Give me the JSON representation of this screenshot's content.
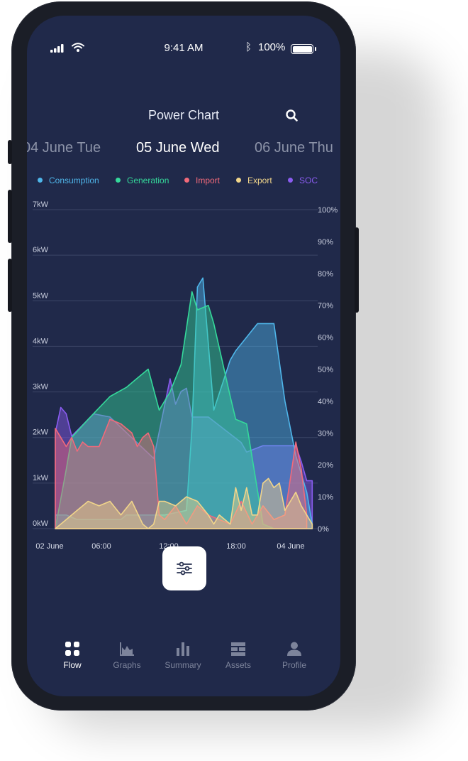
{
  "status_bar": {
    "time": "9:41 AM",
    "battery": "100%"
  },
  "header": {
    "title": "Power Chart"
  },
  "dates": {
    "prev": "04 June Tue",
    "current": "05 June Wed",
    "next": "06 June Thu"
  },
  "legend": [
    {
      "label": "Consumption",
      "color": "#4fb6ea"
    },
    {
      "label": "Generation",
      "color": "#35d99b"
    },
    {
      "label": "Import",
      "color": "#f26a7a"
    },
    {
      "label": "Export",
      "color": "#f1d58a"
    },
    {
      "label": "SOC",
      "color": "#8a5cf0"
    }
  ],
  "nav": [
    {
      "label": "Flow",
      "icon": "grid-icon",
      "active": true
    },
    {
      "label": "Graphs",
      "icon": "area-chart-icon",
      "active": false
    },
    {
      "label": "Summary",
      "icon": "bar-chart-icon",
      "active": false
    },
    {
      "label": "Assets",
      "icon": "list-icon",
      "active": false
    },
    {
      "label": "Profile",
      "icon": "user-icon",
      "active": false
    }
  ],
  "chart_data": {
    "type": "area",
    "x_tick_labels": [
      "02 June",
      "06:00",
      "12:00",
      "18:00",
      "04 June"
    ],
    "y_left_labels": [
      "0kW",
      "1kW",
      "2kW",
      "3kW",
      "4kW",
      "5kW",
      "6kW",
      "7kW"
    ],
    "y_left_range": [
      0,
      7
    ],
    "y_left_unit": "kW",
    "y_right_labels": [
      "0%",
      "10%",
      "20%",
      "30%",
      "40%",
      "50%",
      "60%",
      "70%",
      "80%",
      "90%",
      "100%"
    ],
    "y_right_range": [
      0,
      100
    ],
    "y_right_unit": "%",
    "x_range_hours": [
      0,
      48
    ],
    "series": [
      {
        "name": "SOC",
        "color": "#8a5cf0",
        "axis": "right",
        "x": [
          0,
          1,
          2,
          3,
          7,
          10,
          18,
          21,
          22,
          23,
          24,
          25,
          28,
          34,
          35,
          38,
          44,
          45,
          46,
          47
        ],
        "y": [
          30,
          38,
          36,
          29,
          36,
          35,
          22,
          47,
          39,
          43,
          44,
          35,
          35,
          27,
          24,
          26,
          26,
          21,
          15,
          15
        ]
      },
      {
        "name": "Consumption",
        "color": "#4fb6ea",
        "axis": "left",
        "x": [
          0,
          2,
          4,
          6,
          8,
          10,
          12,
          13,
          16,
          18,
          20,
          24,
          25,
          26,
          27,
          29,
          32,
          33,
          37,
          40,
          42,
          44,
          46,
          47
        ],
        "y": [
          0.3,
          0.3,
          0.2,
          0.2,
          0.2,
          0.2,
          0.2,
          0.3,
          0.3,
          0.3,
          0.3,
          0.4,
          2.2,
          5.3,
          5.5,
          2.6,
          3.7,
          3.9,
          4.5,
          4.5,
          2.8,
          1.6,
          0.8,
          0.1
        ]
      },
      {
        "name": "Generation",
        "color": "#35d99b",
        "axis": "left",
        "x": [
          0,
          2,
          3,
          6,
          10,
          13,
          15,
          17,
          19,
          21,
          23,
          25,
          26,
          28,
          29,
          32,
          33,
          35,
          38,
          40,
          42,
          44
        ],
        "y": [
          0,
          1.3,
          2.0,
          2.4,
          2.9,
          3.1,
          3.3,
          3.5,
          2.6,
          3.0,
          3.6,
          5.2,
          4.8,
          4.9,
          4.5,
          2.9,
          2.4,
          2.3,
          0.1,
          0.0,
          0.0,
          0.0
        ]
      },
      {
        "name": "Import",
        "color": "#f26a7a",
        "axis": "left",
        "x": [
          0,
          1,
          2,
          3,
          4,
          5,
          6,
          8,
          10,
          12,
          14,
          15,
          16,
          17,
          18,
          19,
          20,
          22,
          24,
          26,
          28,
          30,
          32,
          34,
          36,
          38,
          40,
          42,
          44,
          45,
          46
        ],
        "y": [
          2.2,
          2.0,
          1.8,
          2.0,
          1.7,
          1.9,
          1.8,
          1.8,
          2.4,
          2.3,
          2.1,
          1.8,
          2.0,
          2.1,
          1.8,
          0.3,
          0.2,
          0.5,
          0.1,
          0.5,
          0.3,
          0.2,
          0.1,
          0.6,
          0.1,
          0.5,
          0.2,
          0.3,
          1.9,
          1.3,
          0.3
        ]
      },
      {
        "name": "Export",
        "color": "#f1d58a",
        "axis": "left",
        "x": [
          0,
          2,
          4,
          6,
          8,
          10,
          12,
          14,
          16,
          17,
          18,
          19,
          20,
          22,
          24,
          26,
          28,
          29,
          30,
          32,
          33,
          34,
          35,
          36,
          37,
          38,
          39,
          40,
          41,
          42,
          43,
          44,
          45,
          46,
          47
        ],
        "y": [
          0,
          0.2,
          0.4,
          0.6,
          0.5,
          0.6,
          0.3,
          0.6,
          0.1,
          0.0,
          0.1,
          0.6,
          0.6,
          0.5,
          0.7,
          0.6,
          0.3,
          0.1,
          0.3,
          0.1,
          0.9,
          0.4,
          0.9,
          0.3,
          0.3,
          1.0,
          1.1,
          0.9,
          1.0,
          0.4,
          0.6,
          0.8,
          0.5,
          0.3,
          0.1
        ]
      }
    ]
  }
}
